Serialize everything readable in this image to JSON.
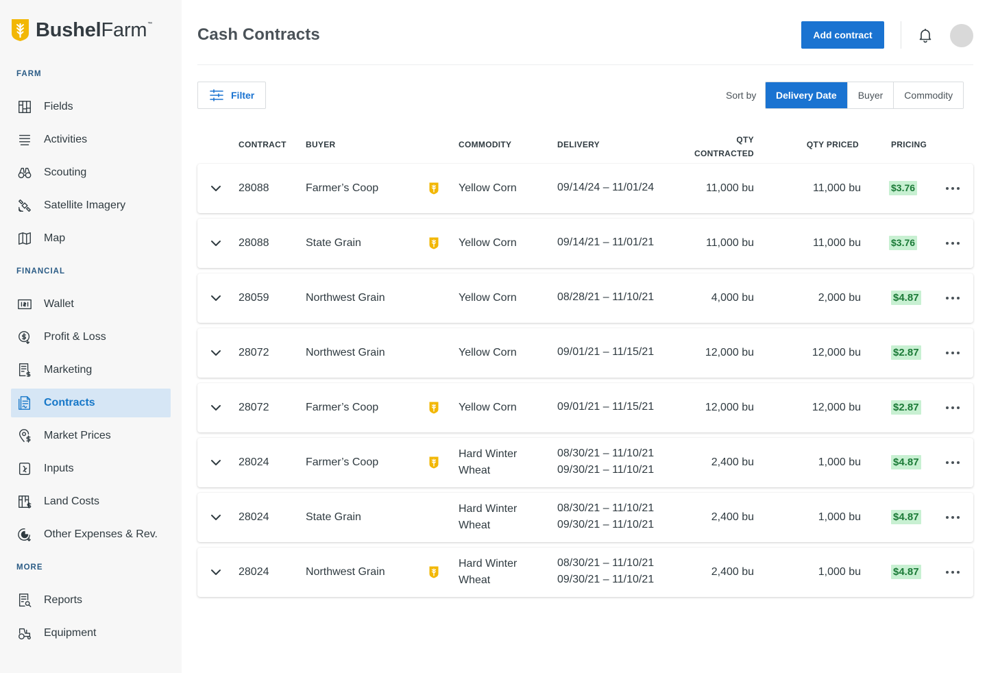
{
  "brand": {
    "name_bold": "Bushel",
    "name_regular": "Farm",
    "tm": "™",
    "accent_color": "#f2b705"
  },
  "sidebar": {
    "sections": [
      {
        "label": "FARM",
        "items": [
          {
            "label": "Fields",
            "icon": "fields-icon"
          },
          {
            "label": "Activities",
            "icon": "activities-icon"
          },
          {
            "label": "Scouting",
            "icon": "binoculars-icon"
          },
          {
            "label": "Satellite Imagery",
            "icon": "satellite-icon"
          },
          {
            "label": "Map",
            "icon": "map-icon"
          }
        ]
      },
      {
        "label": "FINANCIAL",
        "items": [
          {
            "label": "Wallet",
            "icon": "wallet-icon"
          },
          {
            "label": "Profit & Loss",
            "icon": "profit-loss-icon"
          },
          {
            "label": "Marketing",
            "icon": "marketing-icon"
          },
          {
            "label": "Contracts",
            "icon": "contracts-icon",
            "active": true
          },
          {
            "label": "Market Prices",
            "icon": "market-prices-icon"
          },
          {
            "label": "Inputs",
            "icon": "inputs-icon"
          },
          {
            "label": "Land Costs",
            "icon": "land-costs-icon"
          },
          {
            "label": "Other Expenses & Rev.",
            "icon": "other-expenses-icon"
          }
        ]
      },
      {
        "label": "MORE",
        "items": [
          {
            "label": "Reports",
            "icon": "reports-icon"
          },
          {
            "label": "Equipment",
            "icon": "tractor-icon"
          }
        ]
      }
    ]
  },
  "header": {
    "title": "Cash Contracts",
    "add_button": "Add contract"
  },
  "toolbar": {
    "filter_label": "Filter",
    "sort_label": "Sort by",
    "sort_options": [
      "Delivery Date",
      "Buyer",
      "Commodity"
    ],
    "sort_active": "Delivery Date"
  },
  "table": {
    "columns": {
      "contract": "CONTRACT",
      "buyer": "BUYER",
      "commodity": "COMMODITY",
      "delivery": "DELIVERY",
      "qty_contracted_1": "QTY",
      "qty_contracted_2": "CONTRACTED",
      "qty_priced": "QTY PRICED",
      "pricing": "PRICING"
    },
    "rows": [
      {
        "contract": "28088",
        "buyer": "Farmer’s Coop",
        "badge": true,
        "commodity": [
          "Yellow Corn"
        ],
        "delivery": [
          "09/14/24 – 11/01/24"
        ],
        "qty": "11,000 bu",
        "priced": "11,000 bu",
        "price": "$3.76"
      },
      {
        "contract": "28088",
        "buyer": "State Grain",
        "badge": true,
        "commodity": [
          "Yellow Corn"
        ],
        "delivery": [
          "09/14/21 – 11/01/21"
        ],
        "qty": "11,000 bu",
        "priced": "11,000 bu",
        "price": "$3.76"
      },
      {
        "contract": "28059",
        "buyer": "Northwest Grain",
        "badge": false,
        "commodity": [
          "Yellow Corn"
        ],
        "delivery": [
          "08/28/21 – 11/10/21"
        ],
        "qty": "4,000 bu",
        "priced": "2,000 bu",
        "price": "$4.87"
      },
      {
        "contract": "28072",
        "buyer": "Northwest Grain",
        "badge": false,
        "commodity": [
          "Yellow Corn"
        ],
        "delivery": [
          "09/01/21 – 11/15/21"
        ],
        "qty": "12,000 bu",
        "priced": "12,000 bu",
        "price": "$2.87"
      },
      {
        "contract": "28072",
        "buyer": "Farmer’s Coop",
        "badge": true,
        "commodity": [
          "Yellow Corn"
        ],
        "delivery": [
          "09/01/21 – 11/15/21"
        ],
        "qty": "12,000 bu",
        "priced": "12,000 bu",
        "price": "$2.87"
      },
      {
        "contract": "28024",
        "buyer": "Farmer’s Coop",
        "badge": true,
        "commodity": [
          "Hard Winter",
          "Wheat"
        ],
        "delivery": [
          "08/30/21 – 11/10/21",
          "09/30/21 – 11/10/21"
        ],
        "qty": "2,400 bu",
        "priced": "1,000 bu",
        "price": "$4.87"
      },
      {
        "contract": "28024",
        "buyer": "State Grain",
        "badge": false,
        "commodity": [
          "Hard Winter",
          "Wheat"
        ],
        "delivery": [
          "08/30/21 – 11/10/21",
          "09/30/21 – 11/10/21"
        ],
        "qty": "2,400 bu",
        "priced": "1,000 bu",
        "price": "$4.87"
      },
      {
        "contract": "28024",
        "buyer": "Northwest Grain",
        "badge": true,
        "commodity": [
          "Hard Winter",
          "Wheat"
        ],
        "delivery": [
          "08/30/21 – 11/10/21",
          "09/30/21 – 11/10/21"
        ],
        "qty": "2,400 bu",
        "priced": "1,000 bu",
        "price": "$4.87"
      }
    ]
  },
  "colors": {
    "primary": "#1a73d1",
    "price_bg": "#c8f0d2",
    "price_text": "#1b7a37",
    "active_nav_bg": "#d6e6f5"
  }
}
